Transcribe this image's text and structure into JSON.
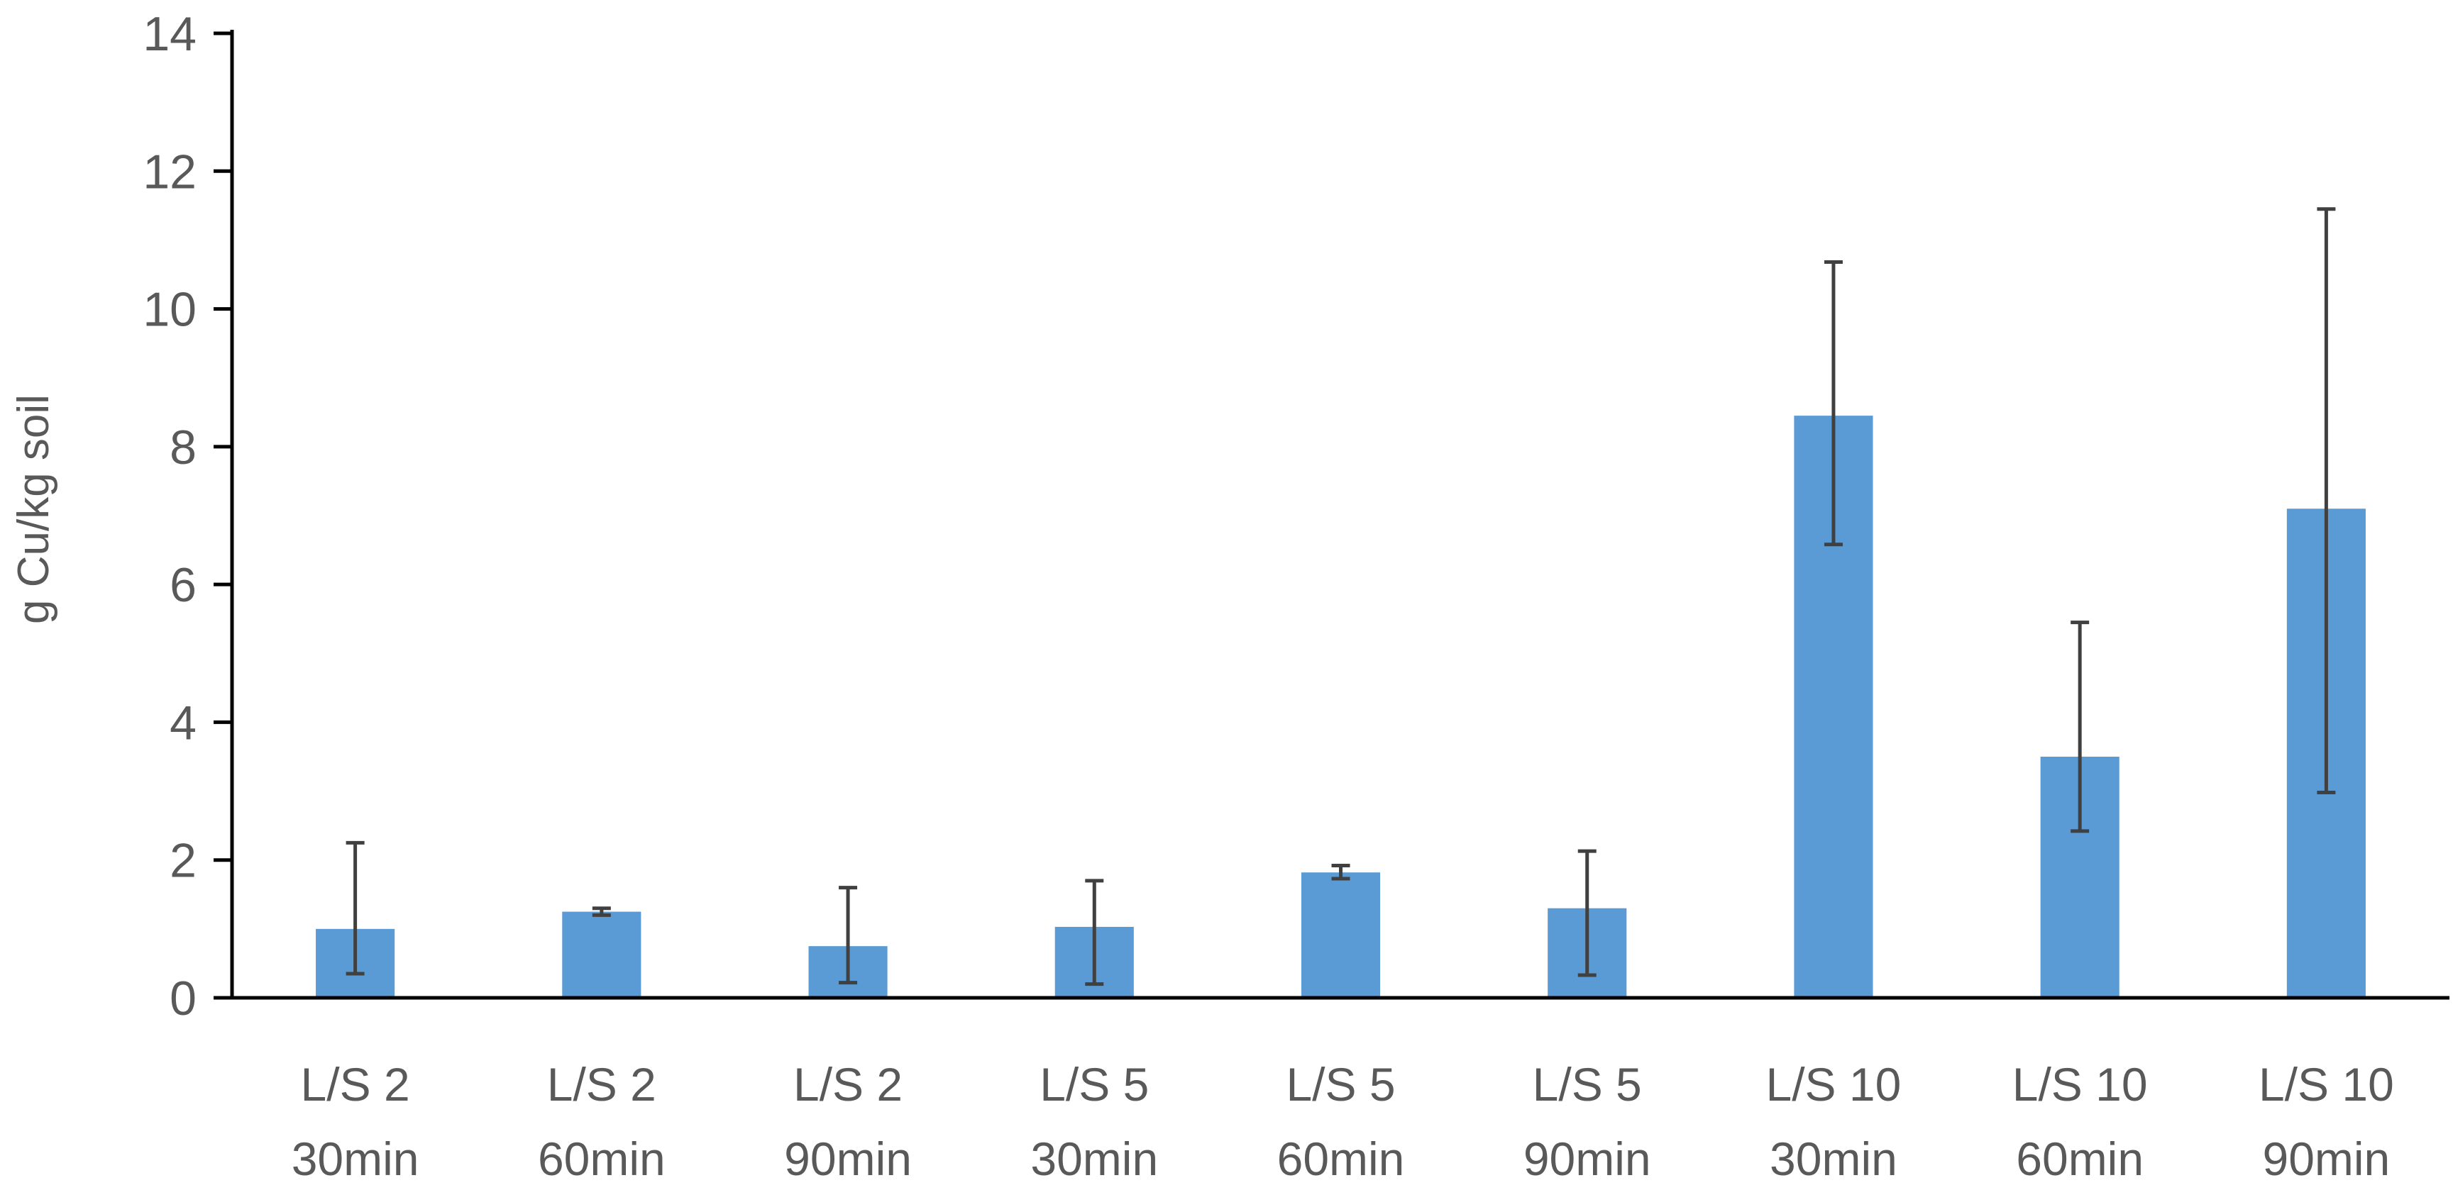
{
  "chart_data": {
    "type": "bar",
    "ylabel": "g Cu/kg soil",
    "xlabel": "",
    "ylim": [
      0,
      14
    ],
    "yticks": [
      0,
      2,
      4,
      6,
      8,
      10,
      12,
      14
    ],
    "grid": false,
    "legend": "none",
    "bar_color": "#5b9bd5",
    "errorbar_color": "#404040",
    "axis_color": "#000000",
    "categories": [
      [
        "L/S 2",
        "30min"
      ],
      [
        "L/S 2",
        "60min"
      ],
      [
        "L/S 2",
        "90min"
      ],
      [
        "L/S 5",
        "30min"
      ],
      [
        "L/S 5",
        "60min"
      ],
      [
        "L/S 5",
        "90min"
      ],
      [
        "L/S 10",
        "30min"
      ],
      [
        "L/S 10",
        "60min"
      ],
      [
        "L/S 10",
        "90min"
      ]
    ],
    "values": [
      1.0,
      1.25,
      0.75,
      1.03,
      1.82,
      1.3,
      8.45,
      3.5,
      7.1
    ],
    "error_low": [
      0.35,
      1.2,
      0.22,
      0.2,
      1.73,
      0.33,
      6.58,
      2.42,
      2.98
    ],
    "error_high": [
      2.25,
      1.3,
      1.6,
      1.7,
      1.92,
      2.13,
      10.68,
      5.45,
      11.45
    ]
  }
}
